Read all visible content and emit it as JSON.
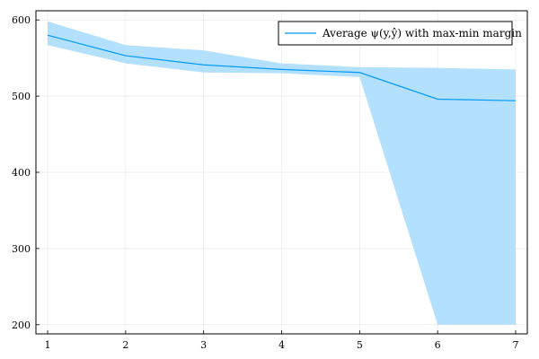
{
  "chart_data": {
    "type": "line",
    "title": "",
    "xlabel": "",
    "ylabel": "",
    "x": [
      1,
      2,
      3,
      4,
      5,
      6,
      7
    ],
    "xlim": [
      0.85,
      7.15
    ],
    "ylim": [
      188,
      612
    ],
    "xticks": [
      1,
      2,
      3,
      4,
      5,
      6,
      7
    ],
    "yticks": [
      200,
      300,
      400,
      500,
      600
    ],
    "grid": true,
    "legend_position": "top-right",
    "series": [
      {
        "name": "Average ψ(y,ŷ) with max-min margin",
        "color": "#009af9",
        "band_color": "#b3e0fd",
        "values": [
          580,
          553,
          541,
          535,
          531,
          496,
          494
        ],
        "band_upper": [
          598,
          567,
          560,
          543,
          538,
          537,
          535
        ],
        "band_lower": [
          567,
          543,
          531,
          530,
          525,
          200,
          200
        ]
      }
    ]
  }
}
